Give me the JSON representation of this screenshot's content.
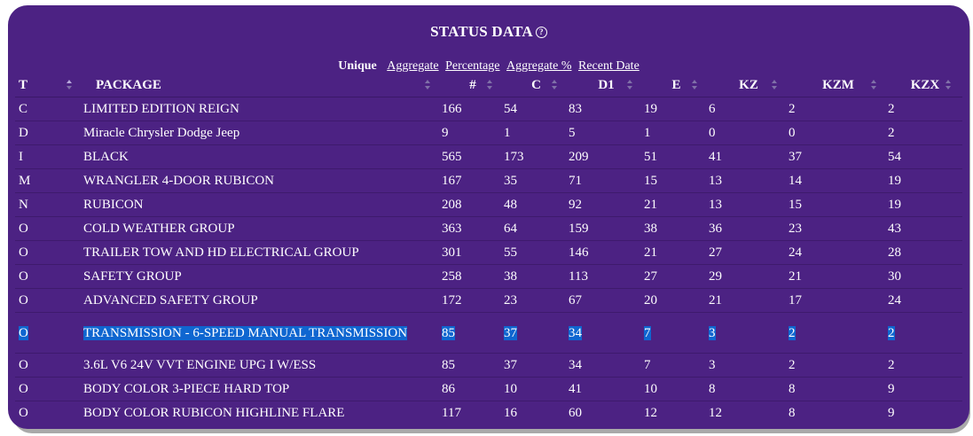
{
  "title": "STATUS DATA",
  "help_icon": "help-circle-icon",
  "modes": {
    "unique": "Unique",
    "links": [
      "Aggregate",
      "Percentage",
      "Aggregate %",
      "Recent Date"
    ]
  },
  "columns": [
    "T",
    "PACKAGE",
    "#",
    "C",
    "D1",
    "E",
    "KZ",
    "KZM",
    "KZX"
  ],
  "rows": [
    [
      "C",
      "LIMITED EDITION REIGN",
      "166",
      "54",
      "83",
      "19",
      "6",
      "2",
      "2"
    ],
    [
      "D",
      "Miracle Chrysler Dodge Jeep",
      "9",
      "1",
      "5",
      "1",
      "0",
      "0",
      "2"
    ],
    [
      "I",
      "BLACK",
      "565",
      "173",
      "209",
      "51",
      "41",
      "37",
      "54"
    ],
    [
      "M",
      "WRANGLER 4-DOOR RUBICON",
      "167",
      "35",
      "71",
      "15",
      "13",
      "14",
      "19"
    ],
    [
      "N",
      "RUBICON",
      "208",
      "48",
      "92",
      "21",
      "13",
      "15",
      "19"
    ],
    [
      "O",
      "COLD WEATHER GROUP",
      "363",
      "64",
      "159",
      "38",
      "36",
      "23",
      "43"
    ],
    [
      "O",
      "TRAILER TOW AND HD ELECTRICAL GROUP",
      "301",
      "55",
      "146",
      "21",
      "27",
      "24",
      "28"
    ],
    [
      "O",
      "SAFETY GROUP",
      "258",
      "38",
      "113",
      "27",
      "29",
      "21",
      "30"
    ],
    [
      "O",
      "ADVANCED SAFETY GROUP",
      "172",
      "23",
      "67",
      "20",
      "21",
      "17",
      "24"
    ],
    [
      "O",
      "TRANSMISSION - 6-SPEED MANUAL TRANSMISSION",
      "85",
      "37",
      "34",
      "7",
      "3",
      "2",
      "2"
    ],
    [
      "O",
      "3.6L V6 24V VVT ENGINE UPG I W/ESS",
      "85",
      "37",
      "34",
      "7",
      "3",
      "2",
      "2"
    ],
    [
      "O",
      "BODY COLOR 3-PIECE HARD TOP",
      "86",
      "10",
      "41",
      "10",
      "8",
      "8",
      "9"
    ],
    [
      "O",
      "BODY COLOR RUBICON HIGHLINE FLARE",
      "117",
      "16",
      "60",
      "12",
      "12",
      "8",
      "9"
    ]
  ],
  "selected_row_index": 9,
  "colors": {
    "panel_bg": "#4c2283",
    "selection": "#0f66d0",
    "text": "#ffffff"
  }
}
